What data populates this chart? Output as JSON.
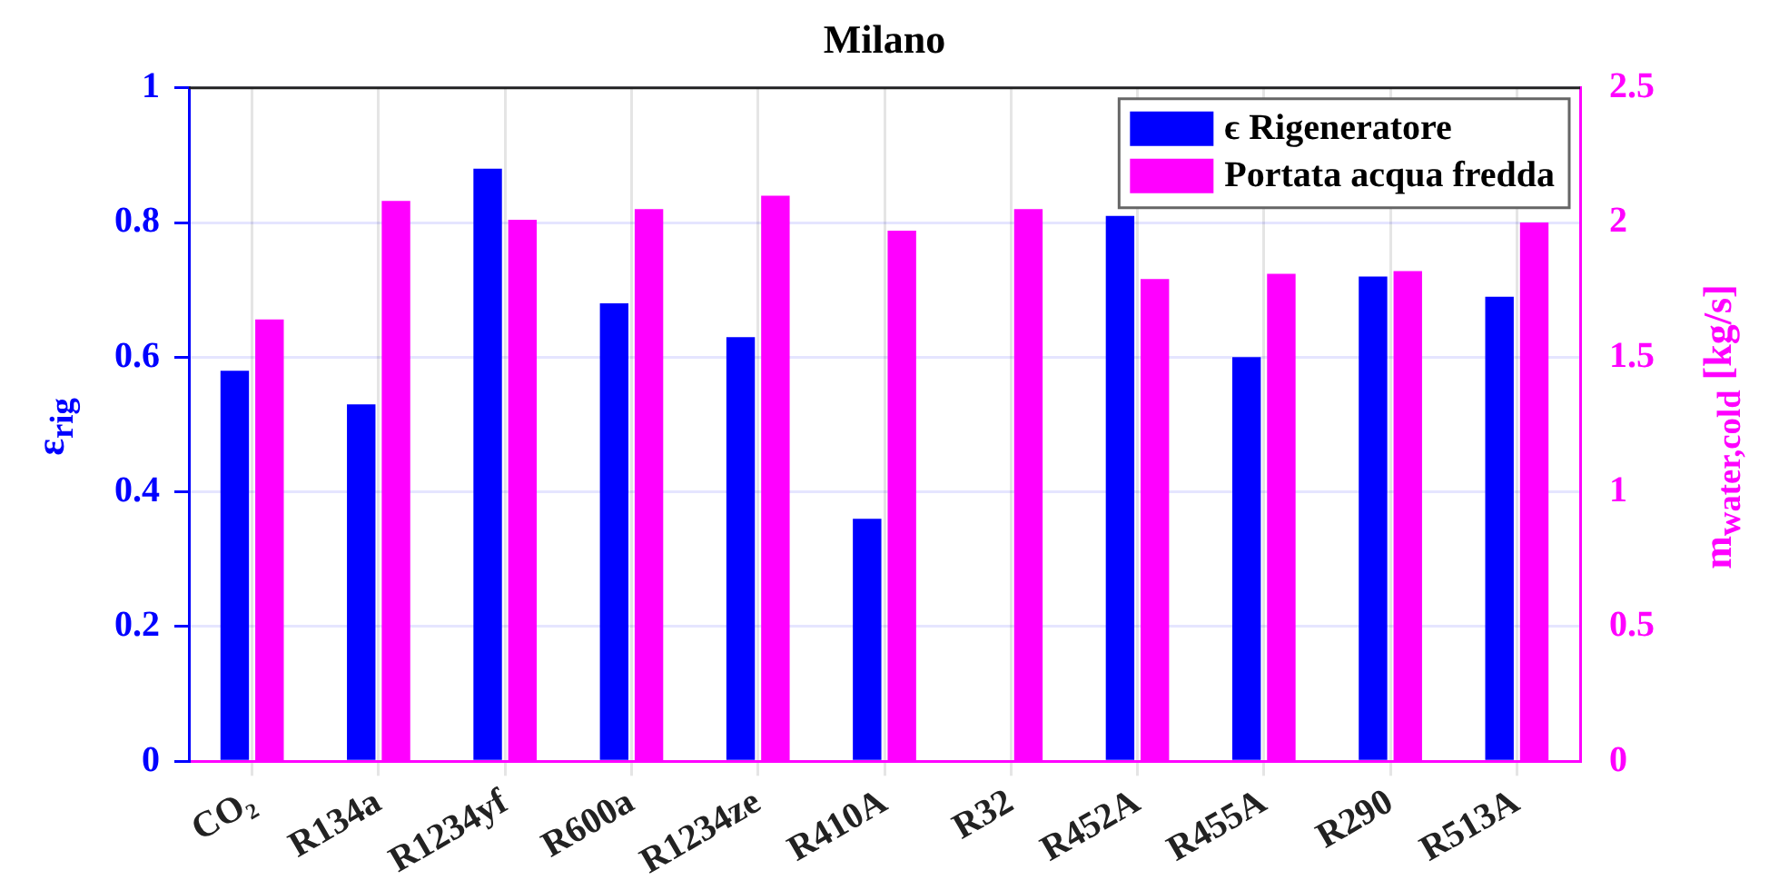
{
  "chart_data": {
    "type": "bar",
    "title": "Milano",
    "ylabel": "ε$_{rig}$",
    "y2label": "m$_{water,cold}$  [kg/s]",
    "categories": [
      "CO₂",
      "R134a",
      "R1234yf",
      "R600a",
      "R1234ze",
      "R410A",
      "R32",
      "R452A",
      "R455A",
      "R290",
      "R513A"
    ],
    "series": [
      {
        "name": "ϵ Rigeneratore",
        "color": "#0000ff",
        "values": [
          0.58,
          0.53,
          0.88,
          0.68,
          0.63,
          0.36,
          null,
          0.81,
          0.6,
          0.72,
          0.69
        ]
      },
      {
        "name": "Portata acqua fredda",
        "color": "#ff00ff",
        "axis": "y2",
        "values": [
          1.64,
          2.08,
          2.01,
          2.05,
          2.1,
          1.97,
          2.05,
          1.79,
          1.81,
          1.82,
          2.0
        ]
      }
    ],
    "ylim": [
      0,
      1
    ],
    "yticks": [
      0,
      0.2,
      0.4,
      0.6,
      0.8,
      1
    ],
    "y2lim": [
      0,
      2.5
    ],
    "y2ticks": [
      0,
      0.5,
      1,
      1.5,
      2,
      2.5
    ],
    "grid": true,
    "legend": "top right"
  }
}
